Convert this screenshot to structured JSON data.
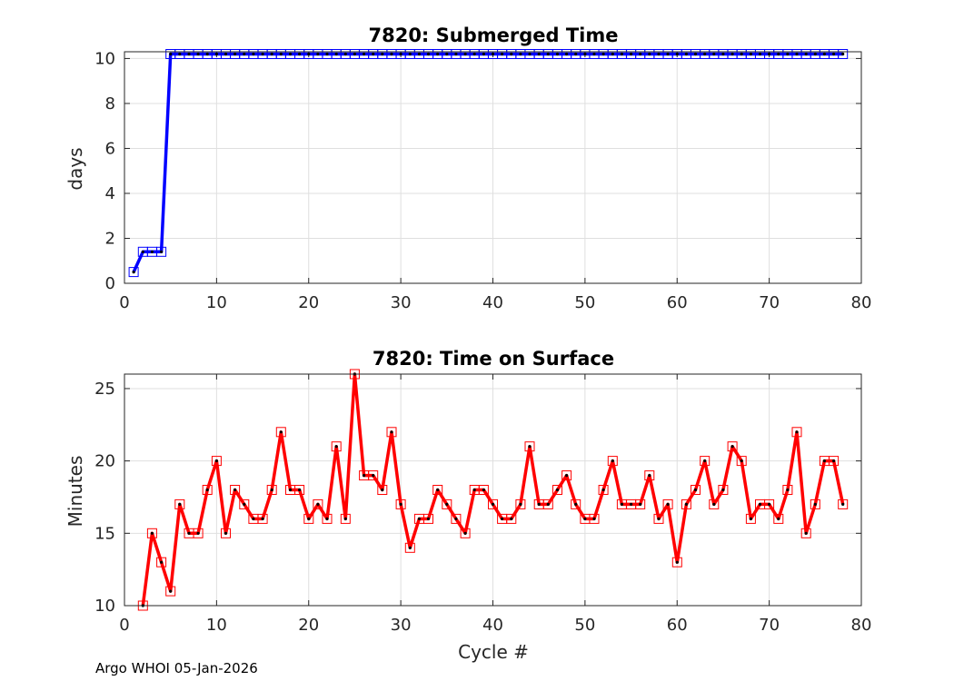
{
  "footer": "Argo WHOI 05-Jan-2026",
  "chart_data": [
    {
      "type": "line",
      "title": "7820: Submerged Time",
      "xlabel": "",
      "ylabel": "days",
      "xlim": [
        0,
        80
      ],
      "ylim": [
        0,
        10.3
      ],
      "xticks": [
        0,
        10,
        20,
        30,
        40,
        50,
        60,
        70,
        80
      ],
      "yticks": [
        0,
        2,
        4,
        6,
        8,
        10
      ],
      "grid": true,
      "color": "#0000ff",
      "marker": "square",
      "series": [
        {
          "name": "Submerged Time",
          "x": [
            1,
            2,
            3,
            4,
            5,
            6,
            7,
            8,
            9,
            10,
            11,
            12,
            13,
            14,
            15,
            16,
            17,
            18,
            19,
            20,
            21,
            22,
            23,
            24,
            25,
            26,
            27,
            28,
            29,
            30,
            31,
            32,
            33,
            34,
            35,
            36,
            37,
            38,
            39,
            40,
            41,
            42,
            43,
            44,
            45,
            46,
            47,
            48,
            49,
            50,
            51,
            52,
            53,
            54,
            55,
            56,
            57,
            58,
            59,
            60,
            61,
            62,
            63,
            64,
            65,
            66,
            67,
            68,
            69,
            70,
            71,
            72,
            73,
            74,
            75,
            76,
            77,
            78
          ],
          "values": [
            0.5,
            1.4,
            1.4,
            1.4,
            10.2,
            10.2,
            10.2,
            10.2,
            10.2,
            10.2,
            10.2,
            10.2,
            10.2,
            10.2,
            10.2,
            10.2,
            10.2,
            10.2,
            10.2,
            10.2,
            10.2,
            10.2,
            10.2,
            10.2,
            10.2,
            10.2,
            10.2,
            10.2,
            10.2,
            10.2,
            10.2,
            10.2,
            10.2,
            10.2,
            10.2,
            10.2,
            10.2,
            10.2,
            10.2,
            10.2,
            10.2,
            10.2,
            10.2,
            10.2,
            10.2,
            10.2,
            10.2,
            10.2,
            10.2,
            10.2,
            10.2,
            10.2,
            10.2,
            10.2,
            10.2,
            10.2,
            10.2,
            10.2,
            10.2,
            10.2,
            10.2,
            10.2,
            10.2,
            10.2,
            10.2,
            10.2,
            10.2,
            10.2,
            10.2,
            10.2,
            10.2,
            10.2,
            10.2,
            10.2,
            10.2,
            10.2,
            10.2,
            10.2
          ]
        }
      ]
    },
    {
      "type": "line",
      "title": "7820: Time on Surface",
      "xlabel": "Cycle #",
      "ylabel": "Minutes",
      "xlim": [
        0,
        80
      ],
      "ylim": [
        10,
        26
      ],
      "xticks": [
        0,
        10,
        20,
        30,
        40,
        50,
        60,
        70,
        80
      ],
      "yticks": [
        10,
        15,
        20,
        25
      ],
      "grid": true,
      "color": "#ff0000",
      "marker": "square",
      "series": [
        {
          "name": "Time on Surface",
          "x": [
            2,
            3,
            4,
            5,
            6,
            7,
            8,
            9,
            10,
            11,
            12,
            13,
            14,
            15,
            16,
            17,
            18,
            19,
            20,
            21,
            22,
            23,
            24,
            25,
            26,
            27,
            28,
            29,
            30,
            31,
            32,
            33,
            34,
            35,
            36,
            37,
            38,
            39,
            40,
            41,
            42,
            43,
            44,
            45,
            46,
            47,
            48,
            49,
            50,
            51,
            52,
            53,
            54,
            55,
            56,
            57,
            58,
            59,
            60,
            61,
            62,
            63,
            64,
            65,
            66,
            67,
            68,
            69,
            70,
            71,
            72,
            73,
            74,
            75,
            76,
            77,
            78
          ],
          "values": [
            10,
            15,
            13,
            11,
            17,
            15,
            15,
            18,
            20,
            15,
            18,
            17,
            16,
            16,
            18,
            22,
            18,
            18,
            16,
            17,
            16,
            21,
            16,
            26,
            19,
            19,
            18,
            22,
            17,
            14,
            16,
            16,
            18,
            17,
            16,
            15,
            18,
            18,
            17,
            16,
            16,
            17,
            21,
            17,
            17,
            18,
            19,
            17,
            16,
            16,
            18,
            20,
            17,
            17,
            17,
            19,
            16,
            17,
            13,
            17,
            18,
            20,
            17,
            18,
            21,
            20,
            16,
            17,
            17,
            16,
            18,
            22,
            15,
            17,
            20,
            20,
            17
          ]
        }
      ]
    }
  ]
}
